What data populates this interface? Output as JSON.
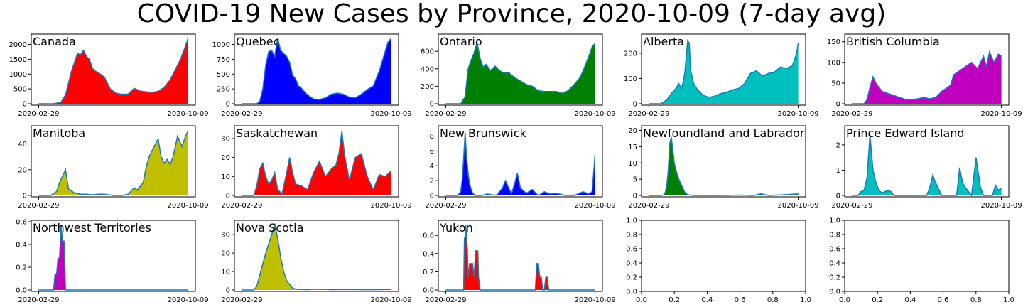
{
  "title": "COVID-19 New Cases by Province, 2020-10-09 (7-day avg)",
  "chart_data": [
    {
      "type": "area",
      "name": "Canada",
      "color": "#ff0000",
      "x_ticks": [
        "2020-02-29",
        "2020-10-09"
      ],
      "y_ticks": [
        "0",
        "500",
        "1000",
        "1500",
        "2000"
      ],
      "ylim": [
        0,
        2300
      ],
      "x": [
        0,
        0.1,
        0.15,
        0.18,
        0.2,
        0.22,
        0.24,
        0.26,
        0.28,
        0.3,
        0.32,
        0.34,
        0.36,
        0.38,
        0.4,
        0.44,
        0.48,
        0.52,
        0.56,
        0.6,
        0.64,
        0.68,
        0.72,
        0.76,
        0.8,
        0.84,
        0.88,
        0.92,
        0.95,
        0.98,
        1
      ],
      "values": [
        0,
        0,
        50,
        300,
        700,
        1100,
        1400,
        1700,
        1650,
        1800,
        1600,
        1500,
        1200,
        1100,
        1050,
        900,
        500,
        350,
        320,
        330,
        520,
        430,
        400,
        380,
        420,
        550,
        800,
        1200,
        1500,
        1900,
        2200
      ]
    },
    {
      "type": "area",
      "name": "Quebec",
      "color": "#0000ff",
      "x_ticks": [
        "2020-02-29",
        "2020-10-09"
      ],
      "y_ticks": [
        "0",
        "250",
        "500",
        "750",
        "1000"
      ],
      "ylim": [
        0,
        1150
      ],
      "x": [
        0,
        0.1,
        0.12,
        0.14,
        0.16,
        0.18,
        0.2,
        0.22,
        0.24,
        0.26,
        0.28,
        0.3,
        0.32,
        0.34,
        0.36,
        0.38,
        0.4,
        0.44,
        0.48,
        0.52,
        0.56,
        0.6,
        0.64,
        0.68,
        0.72,
        0.76,
        0.8,
        0.84,
        0.88,
        0.92,
        0.95,
        0.98,
        1
      ],
      "values": [
        0,
        0,
        40,
        250,
        650,
        880,
        900,
        800,
        1100,
        900,
        850,
        800,
        700,
        480,
        420,
        300,
        260,
        150,
        80,
        70,
        100,
        160,
        180,
        160,
        110,
        100,
        160,
        240,
        300,
        550,
        800,
        1050,
        1100
      ]
    },
    {
      "type": "area",
      "name": "Ontario",
      "color": "#008000",
      "x_ticks": [
        "2020-02-29",
        "2020-10-09"
      ],
      "y_ticks": [
        "0",
        "200",
        "400",
        "600"
      ],
      "ylim": [
        0,
        780
      ],
      "x": [
        0,
        0.1,
        0.13,
        0.15,
        0.17,
        0.19,
        0.21,
        0.23,
        0.25,
        0.27,
        0.3,
        0.33,
        0.36,
        0.39,
        0.42,
        0.46,
        0.5,
        0.54,
        0.58,
        0.62,
        0.66,
        0.7,
        0.74,
        0.78,
        0.82,
        0.86,
        0.9,
        0.93,
        0.96,
        0.98,
        1
      ],
      "values": [
        0,
        0,
        80,
        400,
        500,
        580,
        700,
        520,
        420,
        450,
        380,
        430,
        380,
        350,
        360,
        300,
        260,
        220,
        200,
        150,
        140,
        140,
        140,
        120,
        150,
        220,
        300,
        420,
        550,
        650,
        690
      ]
    },
    {
      "type": "area",
      "name": "Alberta",
      "color": "#00bfbf",
      "x_ticks": [
        "2020-02-29",
        "2020-10-09"
      ],
      "y_ticks": [
        "0",
        "100",
        "200"
      ],
      "ylim": [
        0,
        270
      ],
      "x": [
        0,
        0.08,
        0.12,
        0.15,
        0.18,
        0.2,
        0.22,
        0.24,
        0.26,
        0.27,
        0.28,
        0.3,
        0.32,
        0.36,
        0.4,
        0.44,
        0.48,
        0.52,
        0.56,
        0.6,
        0.64,
        0.68,
        0.72,
        0.76,
        0.8,
        0.84,
        0.88,
        0.92,
        0.96,
        0.99,
        1
      ],
      "values": [
        0,
        0,
        15,
        40,
        60,
        80,
        60,
        120,
        250,
        240,
        130,
        80,
        60,
        35,
        25,
        30,
        40,
        45,
        55,
        60,
        80,
        120,
        130,
        110,
        120,
        125,
        145,
        140,
        150,
        200,
        240
      ]
    },
    {
      "type": "area",
      "name": "British Columbia",
      "color": "#bf00bf",
      "x_ticks": [
        "2020-02-29",
        "2020-10-09"
      ],
      "y_ticks": [
        "0",
        "50",
        "100",
        "150"
      ],
      "ylim": [
        0,
        165
      ],
      "x": [
        0,
        0.08,
        0.1,
        0.12,
        0.14,
        0.16,
        0.18,
        0.2,
        0.24,
        0.28,
        0.32,
        0.36,
        0.4,
        0.44,
        0.48,
        0.52,
        0.56,
        0.6,
        0.64,
        0.66,
        0.68,
        0.72,
        0.76,
        0.8,
        0.84,
        0.88,
        0.9,
        0.92,
        0.95,
        0.98,
        1
      ],
      "values": [
        0,
        0,
        10,
        40,
        65,
        50,
        40,
        30,
        25,
        20,
        15,
        10,
        10,
        12,
        15,
        12,
        15,
        30,
        40,
        45,
        70,
        80,
        90,
        100,
        85,
        115,
        90,
        125,
        100,
        120,
        115
      ]
    },
    {
      "type": "area",
      "name": "Manitoba",
      "color": "#bfbf00",
      "x_ticks": [
        "2020-02-29",
        "2020-10-09"
      ],
      "y_ticks": [
        "0",
        "20",
        "40"
      ],
      "ylim": [
        0,
        53
      ],
      "x": [
        0,
        0.08,
        0.12,
        0.14,
        0.16,
        0.18,
        0.2,
        0.24,
        0.28,
        0.32,
        0.36,
        0.4,
        0.44,
        0.5,
        0.56,
        0.6,
        0.64,
        0.66,
        0.7,
        0.72,
        0.74,
        0.76,
        0.8,
        0.82,
        0.84,
        0.86,
        0.88,
        0.9,
        0.93,
        0.96,
        0.98,
        1
      ],
      "values": [
        0,
        0,
        3,
        10,
        15,
        20,
        5,
        2,
        1,
        1,
        0.5,
        1,
        1,
        0,
        0,
        1,
        6,
        4,
        10,
        22,
        30,
        35,
        44,
        30,
        25,
        28,
        24,
        30,
        46,
        38,
        45,
        50
      ]
    },
    {
      "type": "area",
      "name": "Saskatchewan",
      "color": "#ff0000",
      "x_ticks": [
        "2020-02-29",
        "2020-10-09"
      ],
      "y_ticks": [
        "0",
        "10",
        "20",
        "30"
      ],
      "ylim": [
        0,
        36
      ],
      "x": [
        0,
        0.08,
        0.1,
        0.12,
        0.14,
        0.16,
        0.18,
        0.2,
        0.22,
        0.24,
        0.27,
        0.3,
        0.32,
        0.34,
        0.36,
        0.4,
        0.44,
        0.48,
        0.52,
        0.56,
        0.6,
        0.63,
        0.65,
        0.67,
        0.69,
        0.72,
        0.76,
        0.8,
        0.84,
        0.88,
        0.92,
        0.96,
        1
      ],
      "values": [
        0,
        0,
        5,
        14,
        17,
        10,
        6,
        8,
        12,
        3,
        1,
        12,
        20,
        12,
        6,
        5,
        3,
        12,
        18,
        10,
        14,
        16,
        22,
        34,
        20,
        8,
        20,
        22,
        10,
        3,
        11,
        10,
        13
      ]
    },
    {
      "type": "area",
      "name": "New Brunswick",
      "color": "#0000ff",
      "x_ticks": [
        "2020-02-29",
        "2020-10-09"
      ],
      "y_ticks": [
        "0",
        "2",
        "4",
        "6",
        "8"
      ],
      "ylim": [
        0,
        9.2
      ],
      "x": [
        0,
        0.08,
        0.1,
        0.11,
        0.12,
        0.13,
        0.14,
        0.15,
        0.16,
        0.18,
        0.2,
        0.24,
        0.28,
        0.34,
        0.38,
        0.4,
        0.44,
        0.46,
        0.48,
        0.5,
        0.54,
        0.58,
        0.62,
        0.66,
        0.7,
        0.74,
        0.8,
        0.86,
        0.92,
        0.96,
        0.98,
        1
      ],
      "values": [
        0,
        0,
        0.5,
        2,
        5,
        8.5,
        5,
        3,
        1.5,
        0.3,
        0,
        0,
        0.2,
        0,
        1,
        2,
        0.2,
        1.5,
        3,
        1,
        0.3,
        0.8,
        0,
        0.5,
        0.2,
        0.3,
        0,
        0,
        0.5,
        0.2,
        0.5,
        5.5
      ]
    },
    {
      "type": "area",
      "name": "Newfoundland and Labrador",
      "color": "#008000",
      "x_ticks": [
        "2020-02-29",
        "2020-10-09"
      ],
      "y_ticks": [
        "0",
        "5",
        "10",
        "15",
        "20"
      ],
      "ylim": [
        0,
        21
      ],
      "x": [
        0,
        0.08,
        0.1,
        0.11,
        0.12,
        0.13,
        0.14,
        0.15,
        0.16,
        0.17,
        0.18,
        0.2,
        0.22,
        0.24,
        0.26,
        0.3,
        0.4,
        0.5,
        0.6,
        0.7,
        0.75,
        0.8,
        0.9,
        1
      ],
      "values": [
        0,
        0,
        0.2,
        1,
        3,
        8,
        16,
        18,
        14,
        10,
        8,
        5,
        3,
        1,
        0.2,
        0,
        0,
        0,
        0.1,
        0,
        0.5,
        0,
        0.2,
        0.5
      ]
    },
    {
      "type": "area",
      "name": "Prince Edward Island",
      "color": "#00bfbf",
      "x_ticks": [
        "2020-02-29",
        "2020-10-09"
      ],
      "y_ticks": [
        "0",
        "1",
        "2"
      ],
      "ylim": [
        0,
        2.7
      ],
      "x": [
        0,
        0.04,
        0.06,
        0.08,
        0.1,
        0.12,
        0.14,
        0.16,
        0.18,
        0.2,
        0.22,
        0.24,
        0.26,
        0.28,
        0.3,
        0.4,
        0.5,
        0.52,
        0.54,
        0.56,
        0.6,
        0.7,
        0.72,
        0.74,
        0.76,
        0.8,
        0.83,
        0.86,
        0.88,
        0.94,
        0.96,
        0.98,
        1
      ],
      "values": [
        0,
        0,
        0.15,
        0.2,
        0.7,
        2.4,
        1.0,
        0.5,
        0.2,
        0.1,
        0.15,
        0.2,
        0.15,
        0,
        0,
        0,
        0,
        0.3,
        0.8,
        0.5,
        0,
        0,
        1.1,
        0.5,
        0.3,
        0,
        1.5,
        0.3,
        0,
        0,
        0.4,
        0.2,
        0.3
      ]
    },
    {
      "type": "area",
      "name": "Northwest Territories",
      "color": "#bf00bf",
      "x_ticks": [
        "2020-02-29",
        "2020-10-09"
      ],
      "y_ticks": [
        "0.0",
        "0.2",
        "0.4",
        "0.6"
      ],
      "ylim": [
        0,
        0.6
      ],
      "x": [
        0,
        0.1,
        0.11,
        0.12,
        0.13,
        0.14,
        0.15,
        0.16,
        0.17,
        0.18,
        0.19,
        0.2,
        1
      ],
      "values": [
        0,
        0,
        0.14,
        0.14,
        0.28,
        0.28,
        0.57,
        0.43,
        0.43,
        0,
        0,
        0,
        0
      ]
    },
    {
      "type": "area",
      "name": "Nova Scotia",
      "color": "#bfbf00",
      "x_ticks": [
        "2020-02-29",
        "2020-10-09"
      ],
      "y_ticks": [
        "0",
        "10",
        "20",
        "30"
      ],
      "ylim": [
        0,
        37
      ],
      "x": [
        0,
        0.08,
        0.1,
        0.12,
        0.14,
        0.16,
        0.18,
        0.2,
        0.22,
        0.24,
        0.26,
        0.28,
        0.3,
        0.32,
        0.34,
        0.36,
        0.4,
        0.44,
        0.5,
        0.6,
        0.7,
        0.8,
        0.9,
        1
      ],
      "values": [
        0,
        0,
        2,
        8,
        14,
        20,
        25,
        30,
        36,
        28,
        18,
        10,
        5,
        3,
        1,
        0.5,
        0.3,
        0.2,
        0.5,
        0.2,
        0.3,
        0.2,
        0.2,
        0.3
      ]
    },
    {
      "type": "area",
      "name": "Yukon",
      "color": "#ff0000",
      "x_ticks": [
        "2020-02-29",
        "2020-10-09"
      ],
      "y_ticks": [
        "0.0",
        "0.2",
        "0.4",
        "0.6"
      ],
      "ylim": [
        0,
        0.75
      ],
      "x": [
        0,
        0.12,
        0.125,
        0.13,
        0.135,
        0.14,
        0.145,
        0.15,
        0.16,
        0.17,
        0.18,
        0.19,
        0.2,
        0.21,
        0.215,
        0.22,
        0.23,
        0.24,
        0.245,
        0.25,
        0.26,
        0.6,
        0.61,
        0.62,
        0.63,
        0.64,
        0.65,
        0.66,
        0.67,
        0.68,
        0.69,
        0.7,
        0.71,
        1
      ],
      "values": [
        0,
        0,
        0.57,
        0.57,
        0.71,
        0.57,
        0.43,
        0.14,
        0.29,
        0.29,
        0.29,
        0.14,
        0.43,
        0.43,
        0.43,
        0.14,
        0,
        0,
        0,
        0,
        0,
        0,
        0.29,
        0.29,
        0.14,
        0.14,
        0,
        0,
        0.14,
        0.14,
        0,
        0,
        0,
        0
      ]
    },
    {
      "type": "empty",
      "name": "",
      "x_ticks": [
        "0.0",
        "0.2",
        "0.4",
        "0.6",
        "0.8",
        "1.0"
      ],
      "y_ticks": [
        "0.0",
        "0.2",
        "0.4",
        "0.6",
        "0.8",
        "1.0"
      ]
    },
    {
      "type": "empty",
      "name": "",
      "x_ticks": [
        "0.0",
        "0.2",
        "0.4",
        "0.6",
        "0.8",
        "1.0"
      ],
      "y_ticks": [
        "0.0",
        "0.2",
        "0.4",
        "0.6",
        "0.8",
        "1.0"
      ]
    }
  ]
}
